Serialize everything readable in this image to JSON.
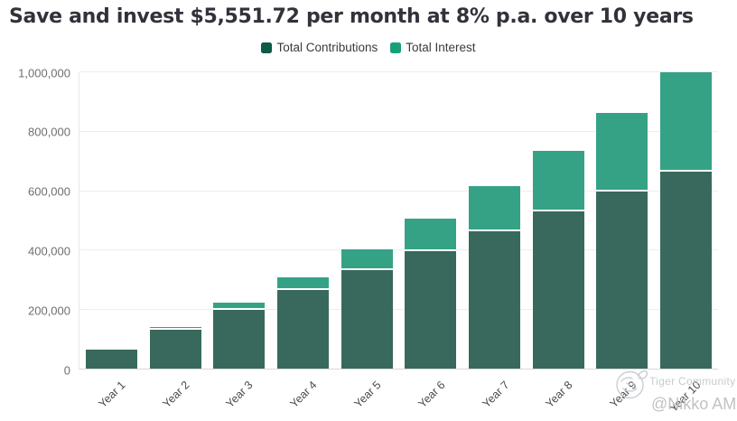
{
  "title": "Save and invest $5,551.72 per month at 8% p.a. over 10 years",
  "legend": {
    "items": [
      {
        "label": "Total Contributions",
        "color": "#0d5a46"
      },
      {
        "label": "Total Interest",
        "color": "#17a077"
      }
    ]
  },
  "watermark": {
    "brand": "Tiger Community",
    "handle": "@Nikko AM",
    "logo_icon": "tiger-circle-logo"
  },
  "colors": {
    "contributions_bar": "#38695c",
    "interest_bar": "#35a286",
    "grid": "#ededed",
    "axis": "#d8d8d8",
    "title_text": "#32323a",
    "ytick_text": "#6f6f6f",
    "xtick_text": "#4a4a4a",
    "watermark_text": "#c7ccd2"
  },
  "chart_data": {
    "type": "bar",
    "stacked": true,
    "title": "Save and invest $5,551.72 per month at 8% p.a. over 10 years",
    "categories": [
      "Year 1",
      "Year 2",
      "Year 3",
      "Year 4",
      "Year 5",
      "Year 6",
      "Year 7",
      "Year 8",
      "Year 9",
      "Year 10"
    ],
    "series": [
      {
        "name": "Total Contributions",
        "values": [
          66621,
          133241,
          199862,
          266483,
          333103,
          399724,
          466344,
          532965,
          599586,
          666206
        ]
      },
      {
        "name": "Total Interest",
        "values": [
          2408,
          10339,
          24238,
          44576,
          71860,
          106661,
          149583,
          201268,
          262413,
          333794
        ]
      }
    ],
    "xlabel": "",
    "ylabel": "",
    "ylim": [
      0,
      1000000
    ],
    "yticks": [
      {
        "value": 0,
        "label": "0"
      },
      {
        "value": 200000,
        "label": "200,000"
      },
      {
        "value": 400000,
        "label": "400,000"
      },
      {
        "value": 600000,
        "label": "600,000"
      },
      {
        "value": 800000,
        "label": "800,000"
      },
      {
        "value": 1000000,
        "label": "1,000,000"
      }
    ],
    "legend_position": "top",
    "grid": "horizontal"
  }
}
